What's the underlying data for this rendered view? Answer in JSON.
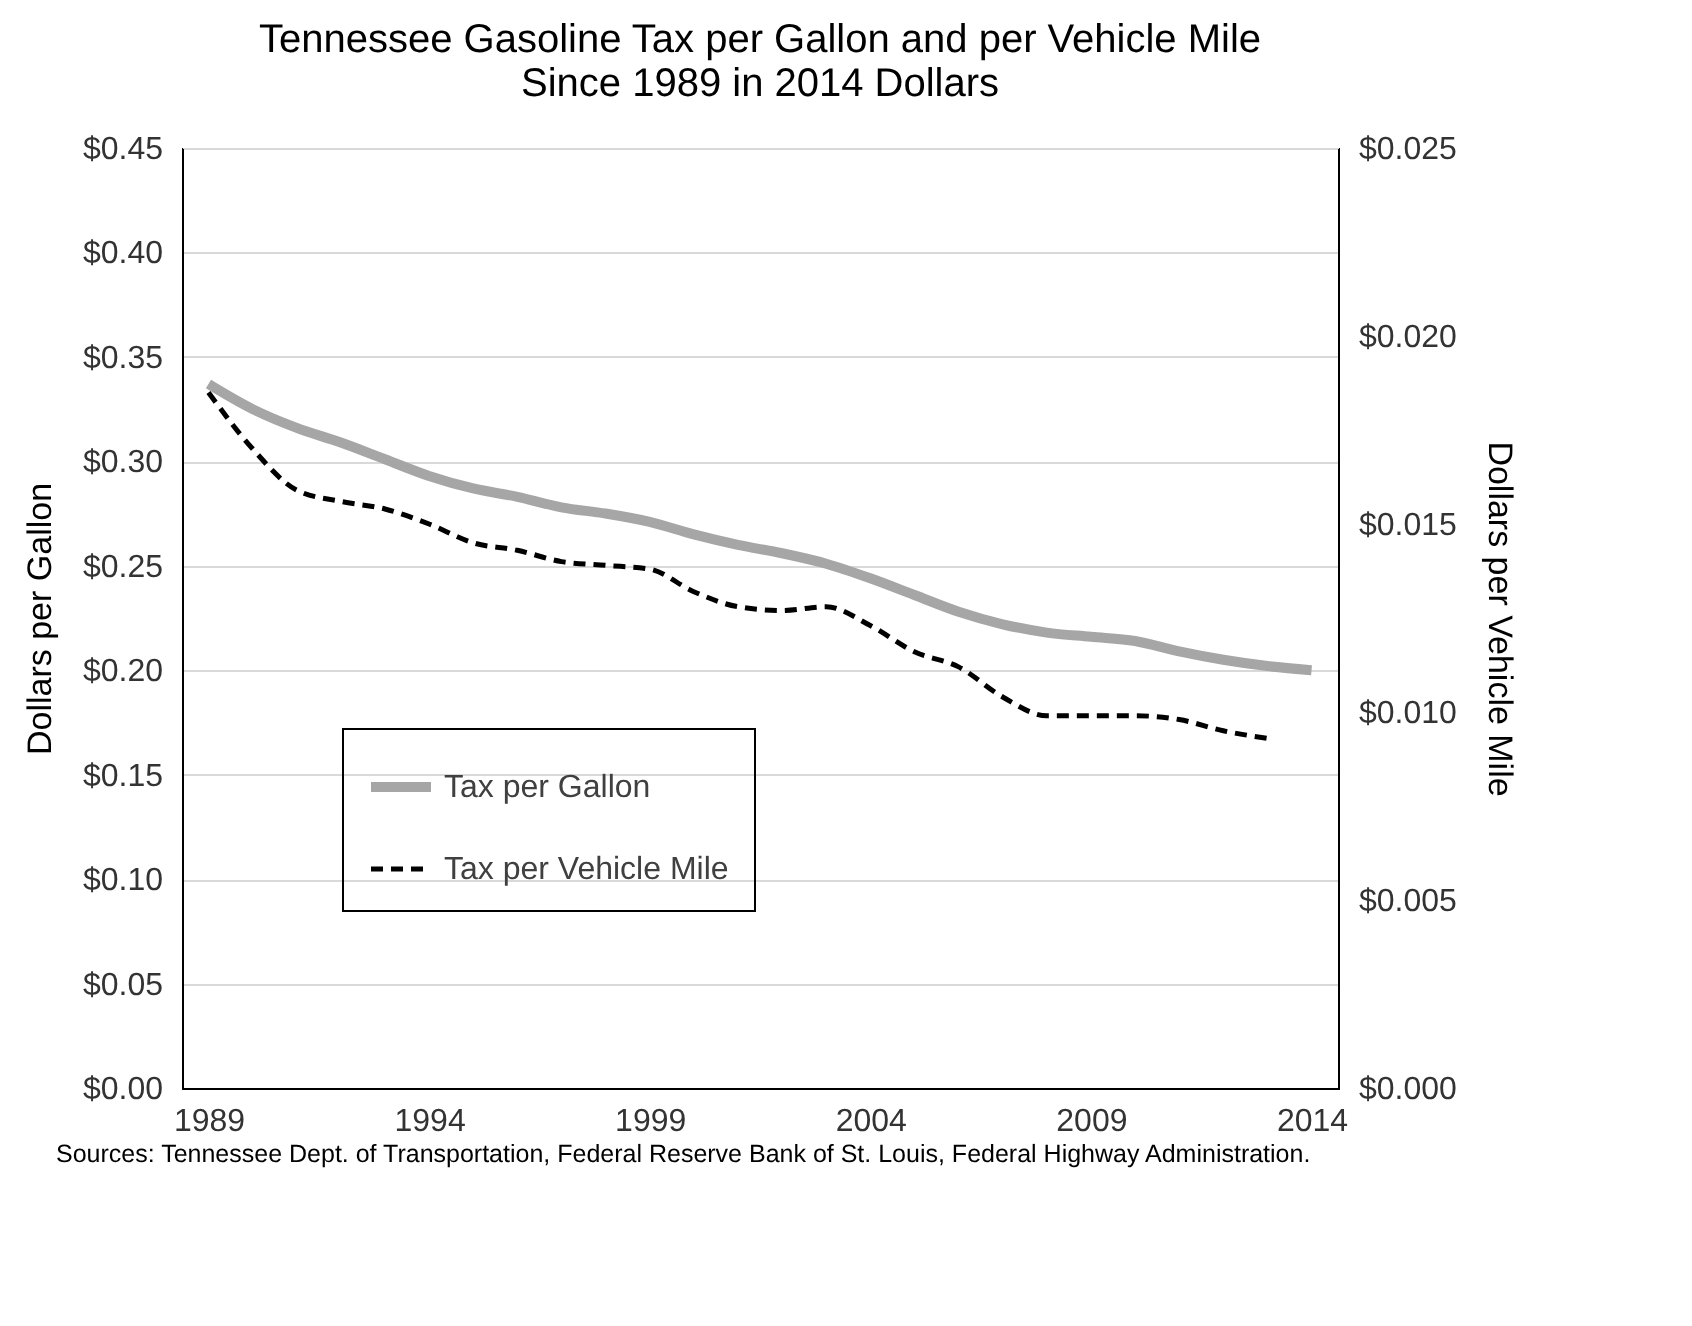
{
  "chart_data": {
    "type": "line",
    "title": "Tennessee Gasoline Tax per Gallon and per Vehicle Mile\nSince 1989 in 2014 Dollars",
    "ylabel": "Dollars per Gallon",
    "y2label": "Dollars per Vehicle Mile",
    "annotations": [
      "Sources: Tennessee Dept. of Transportation, Federal Reserve Bank of St. Louis, Federal Highway Administration."
    ],
    "x": [
      1989,
      1990,
      1991,
      1992,
      1993,
      1994,
      1995,
      1996,
      1997,
      1998,
      1999,
      2000,
      2001,
      2002,
      2003,
      2004,
      2005,
      2006,
      2007,
      2008,
      2009,
      2010,
      2011,
      2012,
      2013,
      2014
    ],
    "series": [
      {
        "name": "Tax per Gallon",
        "color": "#a6a6a6",
        "line_style": "solid",
        "values": [
          0.337,
          0.325,
          0.316,
          0.309,
          0.301,
          0.293,
          0.287,
          0.283,
          0.278,
          0.275,
          0.271,
          0.265,
          0.26,
          0.256,
          0.251,
          0.244,
          0.236,
          0.228,
          0.222,
          0.218,
          0.216,
          0.214,
          0.209,
          0.205,
          0.202,
          0.2
        ]
      },
      {
        "name": "Tax per Vehicle Mile",
        "color": "#000000",
        "line_style": "dashed",
        "axis": "y2",
        "values": [
          0.0185,
          0.017,
          0.0159,
          0.0156,
          0.0154,
          0.015,
          0.0145,
          0.0143,
          0.014,
          0.0139,
          0.0138,
          0.0132,
          0.0128,
          0.0127,
          0.0128,
          0.0123,
          0.0116,
          0.0112,
          0.0104,
          0.0099,
          0.0099,
          0.0099,
          0.0098,
          0.0095,
          0.0093,
          null
        ]
      }
    ],
    "xlim": [
      1988.4,
      2014.6
    ],
    "xticks": [
      1989,
      1994,
      1999,
      2004,
      2009,
      2014
    ],
    "ylim": [
      0,
      0.45
    ],
    "yticks": [
      {
        "value": 0,
        "label": "$0.00"
      },
      {
        "value": 0.05,
        "label": "$0.05"
      },
      {
        "value": 0.1,
        "label": "$0.10"
      },
      {
        "value": 0.15,
        "label": "$0.15"
      },
      {
        "value": 0.2,
        "label": "$0.20"
      },
      {
        "value": 0.25,
        "label": "$0.25"
      },
      {
        "value": 0.3,
        "label": "$0.30"
      },
      {
        "value": 0.35,
        "label": "$0.35"
      },
      {
        "value": 0.4,
        "label": "$0.40"
      },
      {
        "value": 0.45,
        "label": "$0.45"
      }
    ],
    "y2lim": [
      0,
      0.025
    ],
    "y2ticks": [
      {
        "value": 0,
        "label": "$0.000"
      },
      {
        "value": 0.005,
        "label": "$0.005"
      },
      {
        "value": 0.01,
        "label": "$0.010"
      },
      {
        "value": 0.015,
        "label": "$0.015"
      },
      {
        "value": 0.02,
        "label": "$0.020"
      },
      {
        "value": 0.025,
        "label": "$0.025"
      }
    ],
    "grid": "y",
    "legend": "bottom left",
    "marker": "none"
  }
}
